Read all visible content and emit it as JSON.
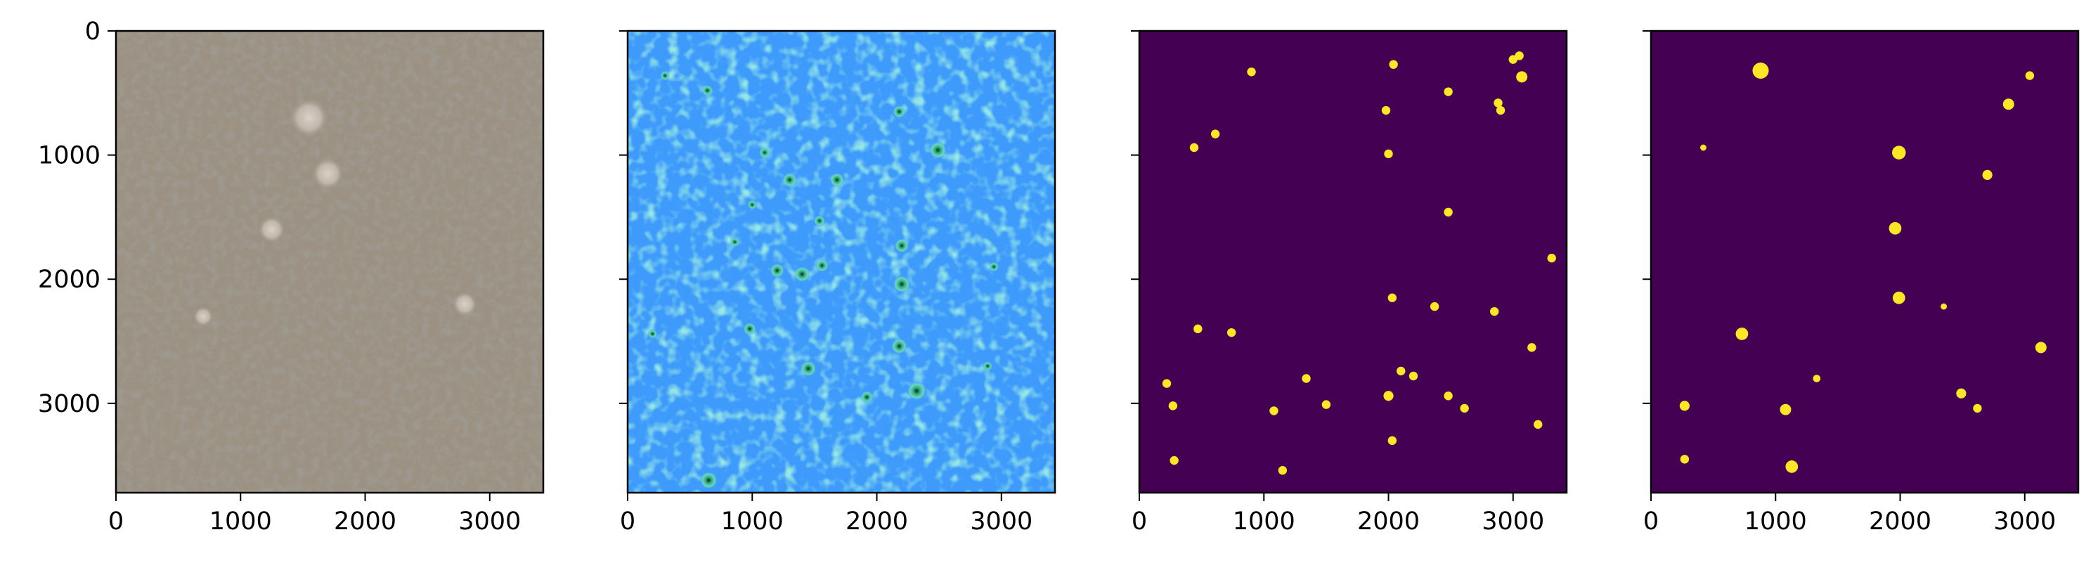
{
  "figure": {
    "background": "#ffffff",
    "axis_color": "#000000",
    "mask_background": "#440154",
    "mask_foreground": "#fde725",
    "heatmap_base": "#3e9bfb",
    "photo_base": "#9c9283"
  },
  "chart_data": [
    {
      "type": "heatmap",
      "content": "aerial image",
      "xlim": [
        0,
        3430
      ],
      "ylim": [
        3720,
        0
      ],
      "xticks": [
        0,
        1000,
        2000,
        3000
      ],
      "yticks": [
        0,
        1000,
        2000,
        3000
      ],
      "xtick_labels": [
        "0",
        "1000",
        "2000",
        "3000"
      ],
      "ytick_labels": [
        "0",
        "1000",
        "2000",
        "3000"
      ],
      "show_ytick_labels": true,
      "light_patches": [
        {
          "x": 1550,
          "y": 700,
          "r": 160
        },
        {
          "x": 1700,
          "y": 1150,
          "r": 130
        },
        {
          "x": 1250,
          "y": 1600,
          "r": 110
        },
        {
          "x": 2800,
          "y": 2200,
          "r": 100
        },
        {
          "x": 700,
          "y": 2300,
          "r": 80
        }
      ]
    },
    {
      "type": "heatmap",
      "content": "density map",
      "xlim": [
        0,
        3430
      ],
      "ylim": [
        3720,
        0
      ],
      "xticks": [
        0,
        1000,
        2000,
        3000
      ],
      "yticks": [
        0,
        1000,
        2000,
        3000
      ],
      "xtick_labels": [
        "0",
        "1000",
        "2000",
        "3000"
      ],
      "show_ytick_labels": false,
      "hotspots": [
        {
          "x": 650,
          "y": 3620,
          "r": 55
        },
        {
          "x": 2490,
          "y": 960,
          "r": 55
        },
        {
          "x": 2200,
          "y": 2040,
          "r": 55
        },
        {
          "x": 2320,
          "y": 2900,
          "r": 60
        },
        {
          "x": 2180,
          "y": 2540,
          "r": 50
        },
        {
          "x": 1680,
          "y": 1200,
          "r": 45
        },
        {
          "x": 1400,
          "y": 1960,
          "r": 50
        },
        {
          "x": 1200,
          "y": 1930,
          "r": 45
        },
        {
          "x": 1450,
          "y": 2720,
          "r": 50
        },
        {
          "x": 1300,
          "y": 1200,
          "r": 45
        },
        {
          "x": 980,
          "y": 2400,
          "r": 40
        },
        {
          "x": 2180,
          "y": 650,
          "r": 40
        },
        {
          "x": 1920,
          "y": 2950,
          "r": 40
        },
        {
          "x": 2200,
          "y": 1730,
          "r": 45
        },
        {
          "x": 640,
          "y": 480,
          "r": 35
        },
        {
          "x": 1560,
          "y": 1890,
          "r": 40
        },
        {
          "x": 1100,
          "y": 980,
          "r": 35
        },
        {
          "x": 1540,
          "y": 1530,
          "r": 35
        },
        {
          "x": 2940,
          "y": 1900,
          "r": 30
        },
        {
          "x": 2890,
          "y": 2700,
          "r": 30
        },
        {
          "x": 300,
          "y": 360,
          "r": 30
        },
        {
          "x": 200,
          "y": 2440,
          "r": 30
        },
        {
          "x": 860,
          "y": 1700,
          "r": 30
        },
        {
          "x": 1000,
          "y": 1400,
          "r": 30
        }
      ]
    },
    {
      "type": "heatmap",
      "content": "binary mask",
      "xlim": [
        0,
        3430
      ],
      "ylim": [
        3720,
        0
      ],
      "xticks": [
        0,
        1000,
        2000,
        3000
      ],
      "yticks": [
        0,
        1000,
        2000,
        3000
      ],
      "xtick_labels": [
        "0",
        "1000",
        "2000",
        "3000"
      ],
      "show_ytick_labels": false,
      "blobs": [
        {
          "x": 900,
          "y": 330,
          "r": 35
        },
        {
          "x": 2040,
          "y": 270,
          "r": 35
        },
        {
          "x": 3000,
          "y": 230,
          "r": 35
        },
        {
          "x": 3050,
          "y": 200,
          "r": 35
        },
        {
          "x": 3070,
          "y": 370,
          "r": 45
        },
        {
          "x": 2880,
          "y": 580,
          "r": 35
        },
        {
          "x": 2900,
          "y": 640,
          "r": 35
        },
        {
          "x": 2480,
          "y": 490,
          "r": 35
        },
        {
          "x": 1980,
          "y": 640,
          "r": 35
        },
        {
          "x": 610,
          "y": 830,
          "r": 35
        },
        {
          "x": 440,
          "y": 940,
          "r": 35
        },
        {
          "x": 2000,
          "y": 990,
          "r": 35
        },
        {
          "x": 2480,
          "y": 1460,
          "r": 35
        },
        {
          "x": 3310,
          "y": 1830,
          "r": 35
        },
        {
          "x": 2030,
          "y": 2150,
          "r": 35
        },
        {
          "x": 2370,
          "y": 2220,
          "r": 35
        },
        {
          "x": 2850,
          "y": 2260,
          "r": 35
        },
        {
          "x": 470,
          "y": 2400,
          "r": 35
        },
        {
          "x": 740,
          "y": 2430,
          "r": 35
        },
        {
          "x": 3150,
          "y": 2550,
          "r": 35
        },
        {
          "x": 2100,
          "y": 2740,
          "r": 35
        },
        {
          "x": 2200,
          "y": 2780,
          "r": 35
        },
        {
          "x": 1340,
          "y": 2800,
          "r": 35
        },
        {
          "x": 220,
          "y": 2840,
          "r": 35
        },
        {
          "x": 2000,
          "y": 2940,
          "r": 40
        },
        {
          "x": 2480,
          "y": 2940,
          "r": 35
        },
        {
          "x": 270,
          "y": 3020,
          "r": 35
        },
        {
          "x": 1500,
          "y": 3010,
          "r": 35
        },
        {
          "x": 1080,
          "y": 3060,
          "r": 35
        },
        {
          "x": 2610,
          "y": 3040,
          "r": 35
        },
        {
          "x": 3200,
          "y": 3170,
          "r": 35
        },
        {
          "x": 2030,
          "y": 3300,
          "r": 35
        },
        {
          "x": 280,
          "y": 3460,
          "r": 35
        },
        {
          "x": 1150,
          "y": 3540,
          "r": 35
        }
      ]
    },
    {
      "type": "heatmap",
      "content": "binary mask",
      "xlim": [
        0,
        3430
      ],
      "ylim": [
        3720,
        0
      ],
      "xticks": [
        0,
        1000,
        2000,
        3000
      ],
      "yticks": [
        0,
        1000,
        2000,
        3000
      ],
      "xtick_labels": [
        "0",
        "1000",
        "2000",
        "3000"
      ],
      "show_ytick_labels": false,
      "blobs": [
        {
          "x": 880,
          "y": 320,
          "r": 65
        },
        {
          "x": 3040,
          "y": 360,
          "r": 35
        },
        {
          "x": 2870,
          "y": 590,
          "r": 45
        },
        {
          "x": 420,
          "y": 940,
          "r": 25
        },
        {
          "x": 1990,
          "y": 980,
          "r": 55
        },
        {
          "x": 2700,
          "y": 1160,
          "r": 40
        },
        {
          "x": 1960,
          "y": 1590,
          "r": 50
        },
        {
          "x": 1990,
          "y": 2150,
          "r": 50
        },
        {
          "x": 2350,
          "y": 2220,
          "r": 25
        },
        {
          "x": 730,
          "y": 2440,
          "r": 50
        },
        {
          "x": 3130,
          "y": 2550,
          "r": 45
        },
        {
          "x": 1330,
          "y": 2800,
          "r": 30
        },
        {
          "x": 2490,
          "y": 2920,
          "r": 40
        },
        {
          "x": 2620,
          "y": 3040,
          "r": 35
        },
        {
          "x": 270,
          "y": 3020,
          "r": 40
        },
        {
          "x": 1080,
          "y": 3050,
          "r": 45
        },
        {
          "x": 270,
          "y": 3450,
          "r": 35
        },
        {
          "x": 1130,
          "y": 3510,
          "r": 50
        }
      ]
    }
  ]
}
